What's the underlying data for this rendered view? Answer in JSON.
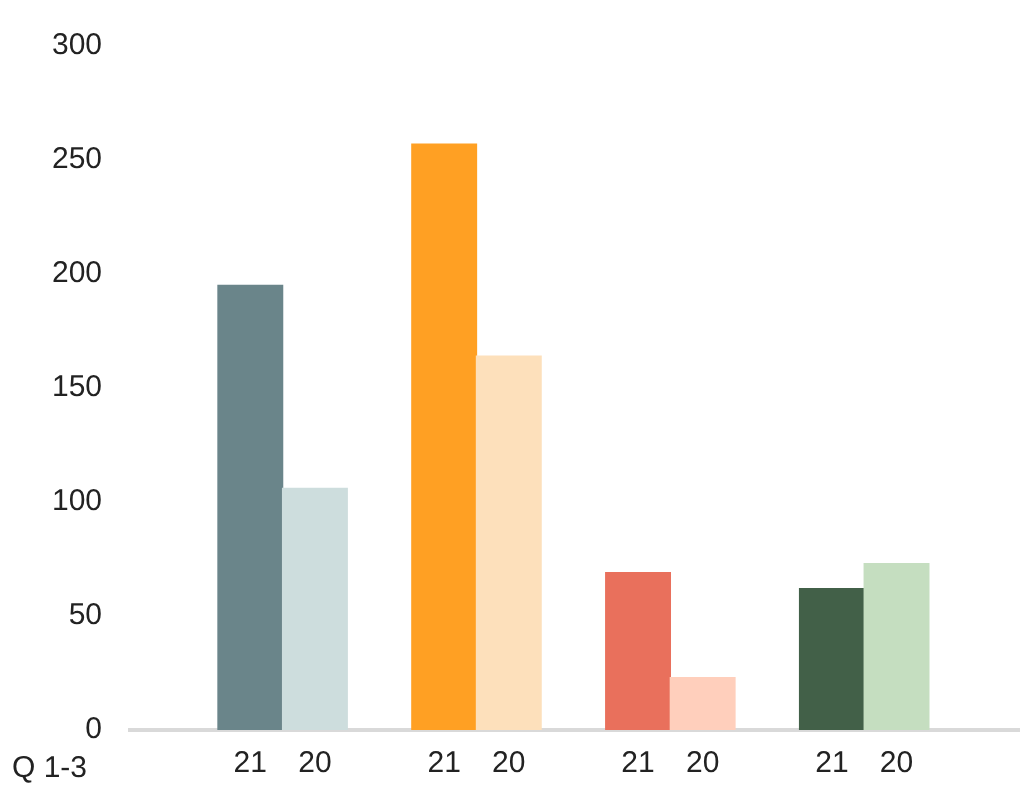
{
  "chart_data": {
    "type": "bar",
    "xlabel": "Q 1-3",
    "categories": [
      "21",
      "20",
      "21",
      "20",
      "21",
      "20",
      "21",
      "20"
    ],
    "values": [
      195,
      106,
      257,
      164,
      69,
      23,
      62,
      73
    ],
    "colors": [
      "#6a858a",
      "#cddddd",
      "#ffa023",
      "#fde0bb",
      "#e9705c",
      "#ffcfbc",
      "#426048",
      "#c5dec0"
    ],
    "ylim": [
      0,
      300
    ],
    "yticks": [
      0,
      50,
      100,
      150,
      200,
      250,
      300
    ],
    "grid": false
  }
}
